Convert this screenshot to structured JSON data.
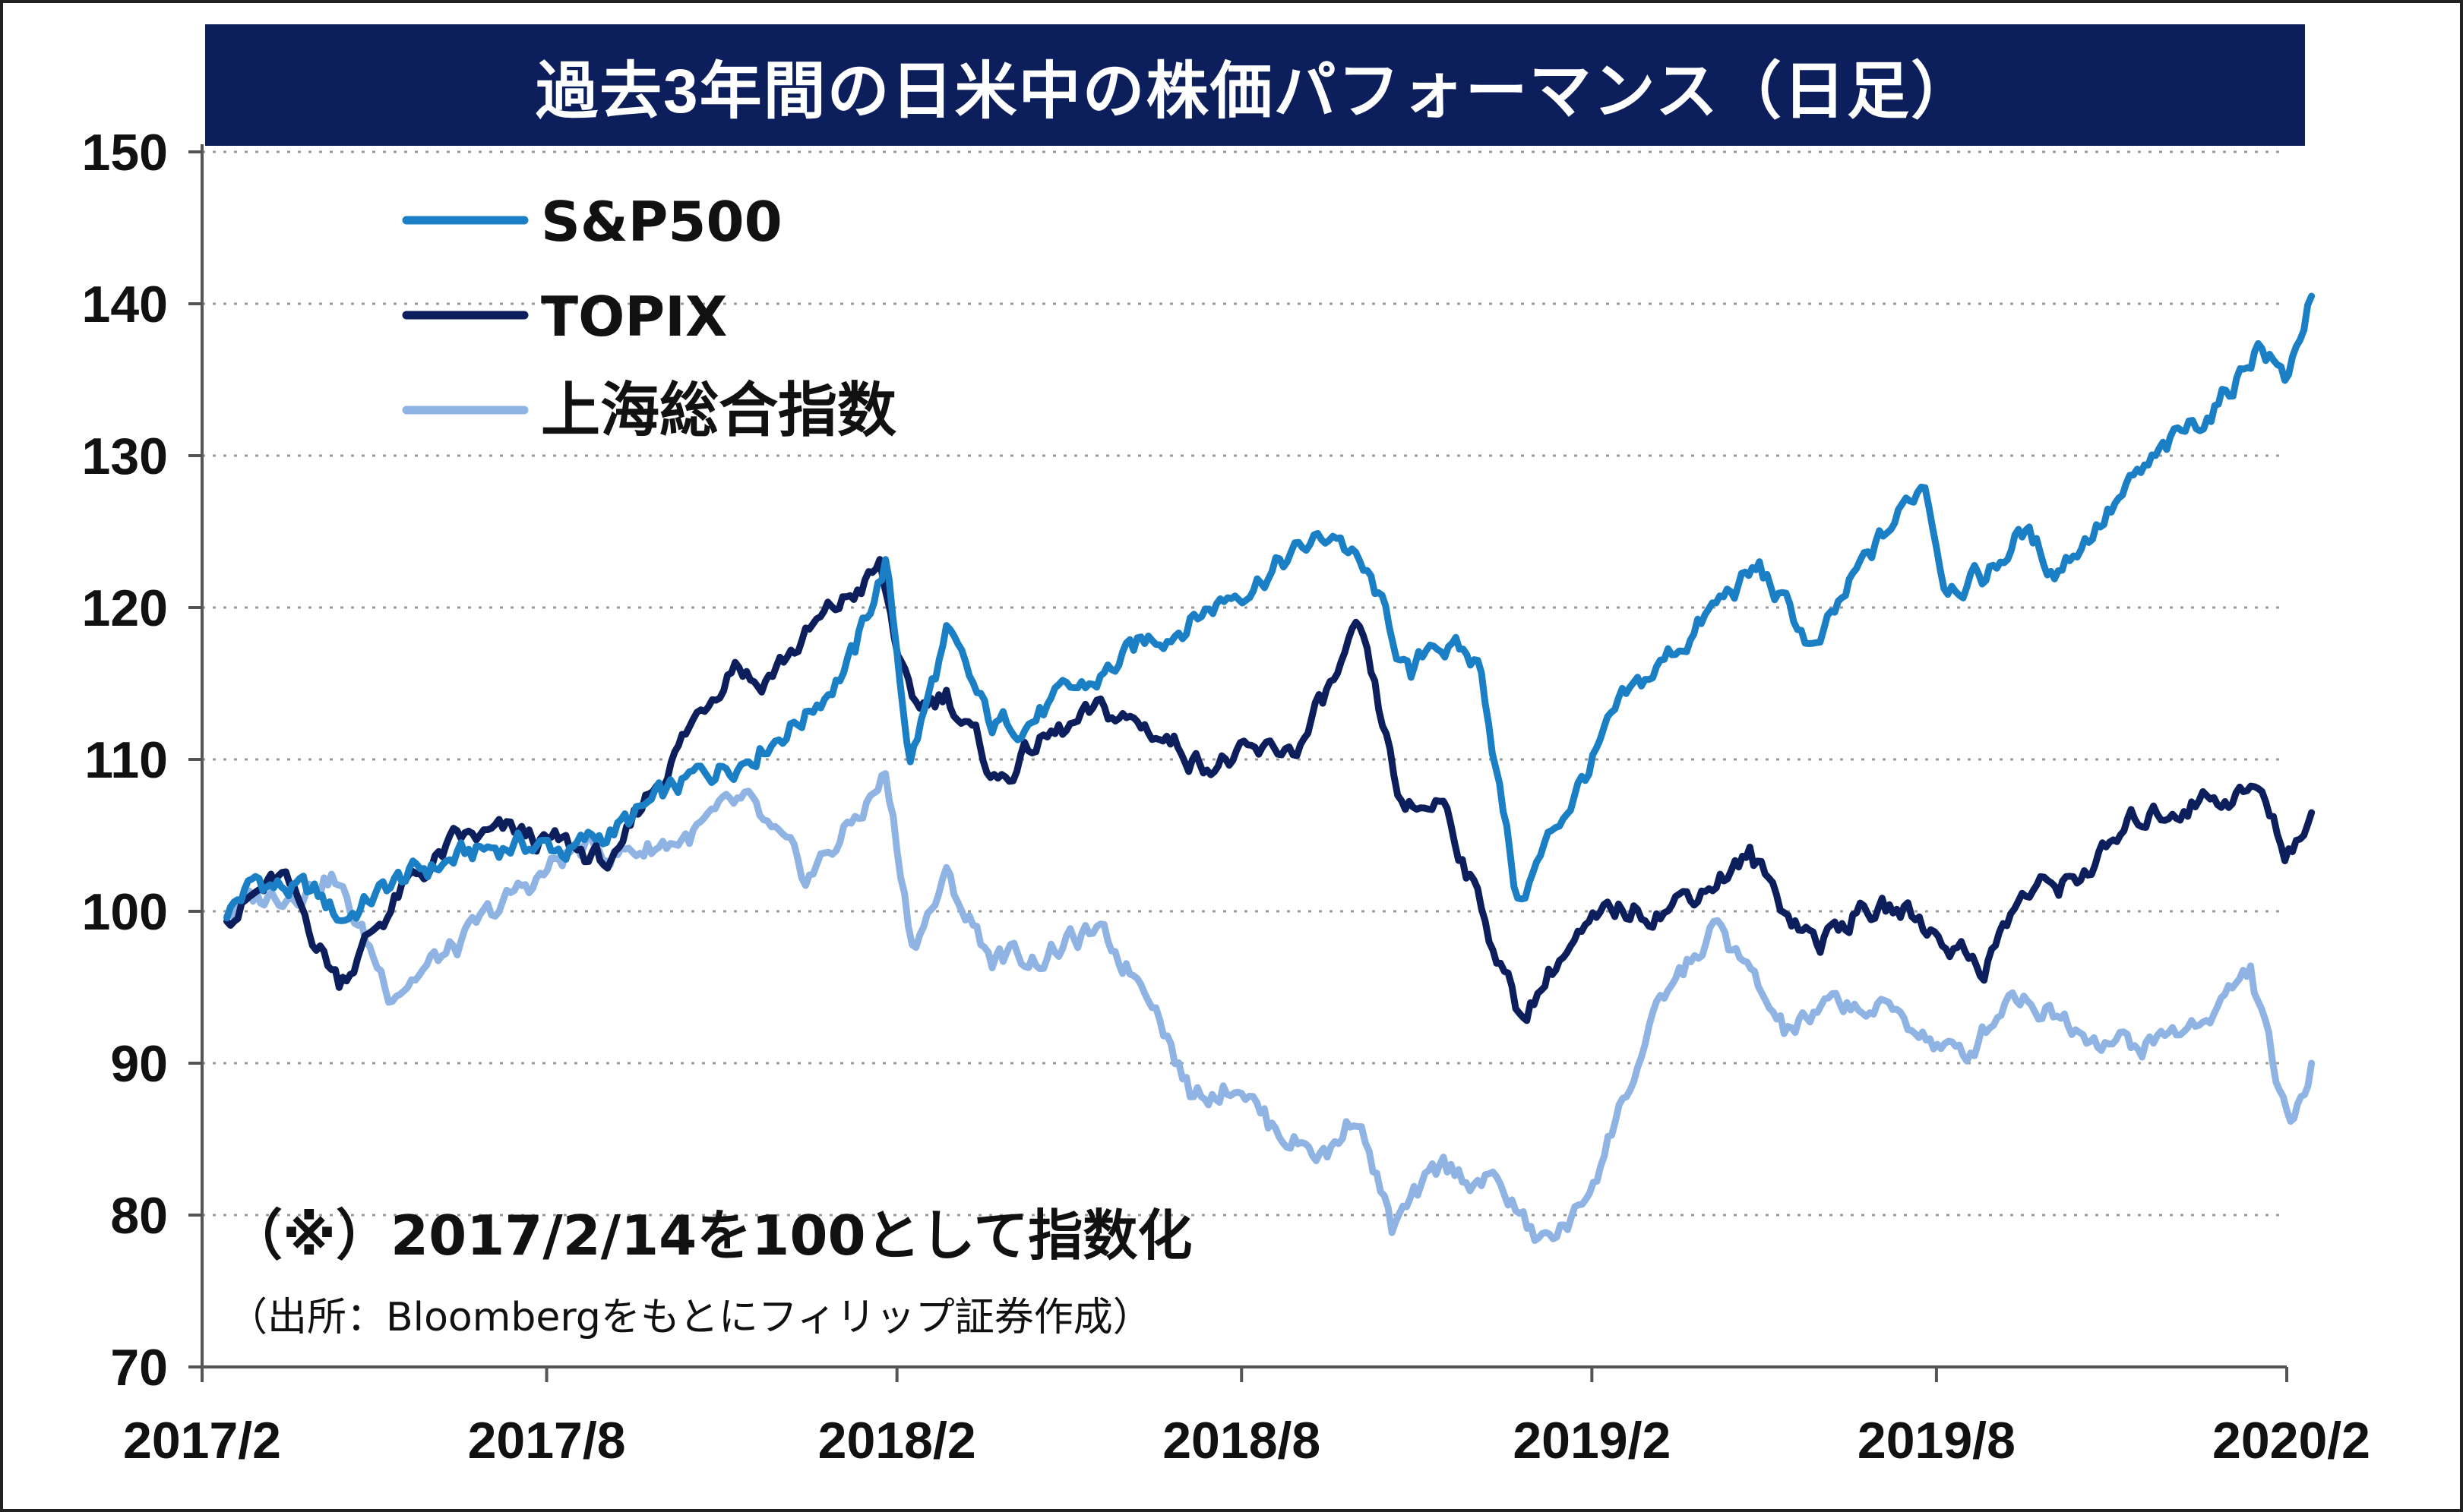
{
  "chart_data": {
    "type": "line",
    "title": "過去3年間の日米中の株価パフォーマンス（日足）",
    "xlabel": "",
    "ylabel": "",
    "ylim": [
      70,
      150
    ],
    "yticks": [
      "150",
      "140",
      "130",
      "120",
      "110",
      "100",
      "90",
      "80",
      "70"
    ],
    "xticks": [
      "2017/2",
      "2017/8",
      "2018/2",
      "2018/8",
      "2019/2",
      "2019/8",
      "2020/2"
    ],
    "grid": "horizontal dotted",
    "legend_position": "top-left",
    "annotation": "（※）2017/2/14を100として指数化",
    "source": "（出所：Bloombergをもとにフィリップ証券作成）",
    "series": [
      {
        "name": "S&P500",
        "color": "#1a7fc4",
        "points": [
          [
            "2017-02-14",
            100
          ],
          [
            "2017-03-01",
            102
          ],
          [
            "2017-04-01",
            101
          ],
          [
            "2017-04-15",
            99.5
          ],
          [
            "2017-05-15",
            102
          ],
          [
            "2017-06-15",
            103.5
          ],
          [
            "2017-07-15",
            104.5
          ],
          [
            "2017-08-15",
            104
          ],
          [
            "2017-09-15",
            106
          ],
          [
            "2017-10-15",
            108.5
          ],
          [
            "2017-11-15",
            110.5
          ],
          [
            "2017-12-15",
            113
          ],
          [
            "2018-01-10",
            117
          ],
          [
            "2018-01-26",
            123
          ],
          [
            "2018-02-08",
            110
          ],
          [
            "2018-02-27",
            118
          ],
          [
            "2018-03-23",
            112
          ],
          [
            "2018-04-15",
            113
          ],
          [
            "2018-05-15",
            115
          ],
          [
            "2018-06-15",
            118
          ],
          [
            "2018-07-15",
            120
          ],
          [
            "2018-08-15",
            122.5
          ],
          [
            "2018-09-20",
            125
          ],
          [
            "2018-10-10",
            121
          ],
          [
            "2018-10-29",
            115
          ],
          [
            "2018-11-10",
            118
          ],
          [
            "2018-12-05",
            116
          ],
          [
            "2018-12-24",
            100.5
          ],
          [
            "2019-01-15",
            106
          ],
          [
            "2019-02-15",
            113
          ],
          [
            "2019-03-15",
            117
          ],
          [
            "2019-04-15",
            121
          ],
          [
            "2019-04-30",
            122.5
          ],
          [
            "2019-05-30",
            117
          ],
          [
            "2019-06-20",
            122
          ],
          [
            "2019-07-26",
            128.5
          ],
          [
            "2019-08-05",
            122
          ],
          [
            "2019-08-27",
            122
          ],
          [
            "2019-09-15",
            125
          ],
          [
            "2019-10-02",
            122.5
          ],
          [
            "2019-10-28",
            126
          ],
          [
            "2019-11-28",
            130
          ],
          [
            "2019-12-31",
            134
          ],
          [
            "2020-01-17",
            137.5
          ],
          [
            "2020-01-31",
            135
          ],
          [
            "2020-02-14",
            140.5
          ]
        ]
      },
      {
        "name": "TOPIX",
        "color": "#0c1f5c",
        "points": [
          [
            "2017-02-14",
            100
          ],
          [
            "2017-03-15",
            102
          ],
          [
            "2017-04-14",
            95.5
          ],
          [
            "2017-05-15",
            101
          ],
          [
            "2017-06-15",
            104.5
          ],
          [
            "2017-07-15",
            105
          ],
          [
            "2017-08-15",
            104
          ],
          [
            "2017-09-08",
            103
          ],
          [
            "2017-09-20",
            107
          ],
          [
            "2017-10-15",
            112
          ],
          [
            "2017-11-08",
            117
          ],
          [
            "2017-11-20",
            115
          ],
          [
            "2017-12-15",
            118
          ],
          [
            "2018-01-23",
            122.5
          ],
          [
            "2018-02-09",
            113
          ],
          [
            "2018-02-27",
            114.5
          ],
          [
            "2018-03-26",
            108.5
          ],
          [
            "2018-04-15",
            111
          ],
          [
            "2018-05-21",
            113
          ],
          [
            "2018-06-15",
            112
          ],
          [
            "2018-07-10",
            110
          ],
          [
            "2018-08-10",
            110
          ],
          [
            "2018-09-01",
            111
          ],
          [
            "2018-10-02",
            118
          ],
          [
            "2018-10-26",
            106
          ],
          [
            "2018-11-15",
            107.5
          ],
          [
            "2018-12-25",
            93
          ],
          [
            "2019-01-15",
            97
          ],
          [
            "2019-02-15",
            100
          ],
          [
            "2019-03-15",
            100.5
          ],
          [
            "2019-04-25",
            103.5
          ],
          [
            "2019-05-15",
            100
          ],
          [
            "2019-06-01",
            98
          ],
          [
            "2019-06-20",
            100
          ],
          [
            "2019-07-15",
            100
          ],
          [
            "2019-08-26",
            96.5
          ],
          [
            "2019-09-15",
            101
          ],
          [
            "2019-10-10",
            102
          ],
          [
            "2019-10-31",
            104
          ],
          [
            "2019-11-15",
            106
          ],
          [
            "2019-12-17",
            107.5
          ],
          [
            "2020-01-17",
            108
          ],
          [
            "2020-01-31",
            104
          ],
          [
            "2020-02-14",
            106.5
          ]
        ]
      },
      {
        "name": "上海総合指数",
        "color": "#8fb4e3",
        "points": [
          [
            "2017-02-14",
            100
          ],
          [
            "2017-04-10",
            102.5
          ],
          [
            "2017-05-10",
            95
          ],
          [
            "2017-06-15",
            97.5
          ],
          [
            "2017-07-15",
            101
          ],
          [
            "2017-08-15",
            104
          ],
          [
            "2017-09-15",
            104
          ],
          [
            "2017-10-15",
            105
          ],
          [
            "2017-11-13",
            107
          ],
          [
            "2017-12-15",
            102
          ],
          [
            "2018-01-10",
            106
          ],
          [
            "2018-01-26",
            109
          ],
          [
            "2018-02-09",
            98
          ],
          [
            "2018-02-27",
            102
          ],
          [
            "2018-03-23",
            97
          ],
          [
            "2018-04-15",
            97
          ],
          [
            "2018-05-15",
            98.5
          ],
          [
            "2018-06-15",
            95
          ],
          [
            "2018-07-05",
            88
          ],
          [
            "2018-08-01",
            89
          ],
          [
            "2018-08-15",
            86
          ],
          [
            "2018-09-15",
            84
          ],
          [
            "2018-10-01",
            87
          ],
          [
            "2018-10-19",
            79
          ],
          [
            "2018-11-15",
            83
          ],
          [
            "2018-12-15",
            82
          ],
          [
            "2019-01-04",
            78
          ],
          [
            "2019-01-25",
            80
          ],
          [
            "2019-02-25",
            90
          ],
          [
            "2019-03-15",
            95
          ],
          [
            "2019-04-08",
            99
          ],
          [
            "2019-05-13",
            92
          ],
          [
            "2019-06-15",
            94
          ],
          [
            "2019-07-15",
            93
          ],
          [
            "2019-08-15",
            90
          ],
          [
            "2019-09-10",
            95
          ],
          [
            "2019-10-15",
            92.5
          ],
          [
            "2019-11-15",
            91
          ],
          [
            "2019-12-15",
            92.5
          ],
          [
            "2020-01-13",
            96
          ],
          [
            "2020-02-03",
            85
          ],
          [
            "2020-02-14",
            90
          ]
        ]
      }
    ]
  }
}
